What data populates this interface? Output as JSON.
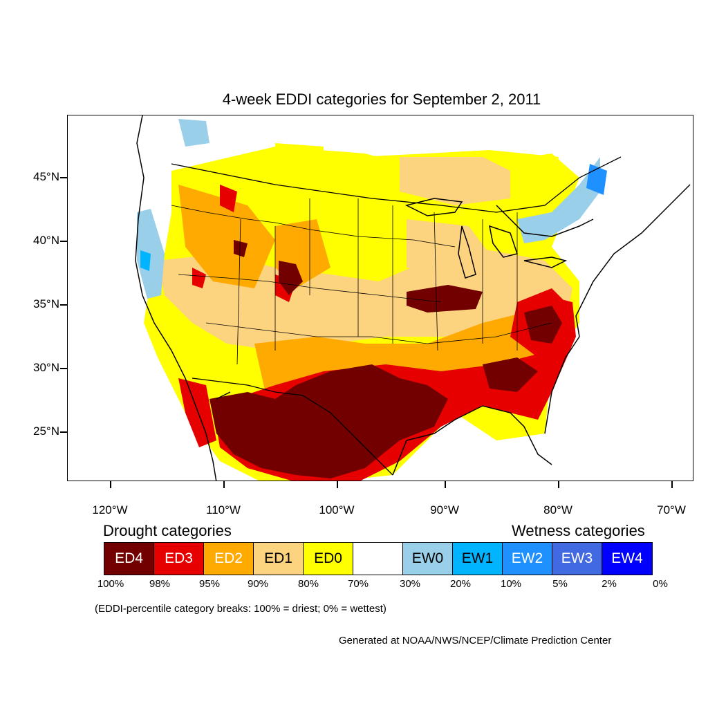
{
  "title": "4-week EDDI categories for September 2, 2011",
  "latitude_labels": [
    "45°N",
    "40°N",
    "35°N",
    "30°N",
    "25°N"
  ],
  "longitude_labels": [
    "120°W",
    "110°W",
    "100°W",
    "90°W",
    "80°W",
    "70°W"
  ],
  "drought_label": "Drought categories",
  "wetness_label": "Wetness categories",
  "legend": [
    {
      "label": "ED4",
      "color": "#730000",
      "text_color": "#ffffff"
    },
    {
      "label": "ED3",
      "color": "#e60000",
      "text_color": "#ffffff"
    },
    {
      "label": "ED2",
      "color": "#ffaa00",
      "text_color": "#ffffff"
    },
    {
      "label": "ED1",
      "color": "#fcd37f",
      "text_color": "#000000"
    },
    {
      "label": "ED0",
      "color": "#ffff00",
      "text_color": "#000000"
    },
    {
      "label": "",
      "color": "#ffffff",
      "text_color": "#000000"
    },
    {
      "label": "EW0",
      "color": "#9acfea",
      "text_color": "#000000"
    },
    {
      "label": "EW1",
      "color": "#00b4ff",
      "text_color": "#000000"
    },
    {
      "label": "EW2",
      "color": "#1e90ff",
      "text_color": "#ffffff"
    },
    {
      "label": "EW3",
      "color": "#4169e1",
      "text_color": "#ffffff"
    },
    {
      "label": "EW4",
      "color": "#0000ff",
      "text_color": "#ffffff"
    }
  ],
  "percentiles": [
    "100%",
    "98%",
    "95%",
    "90%",
    "80%",
    "70%",
    "30%",
    "20%",
    "10%",
    "5%",
    "2%",
    "0%"
  ],
  "note": "(EDDI-percentile category breaks: 100% = driest; 0% = wettest)",
  "credit": "Generated at NOAA/NWS/NCEP/Climate Prediction Center"
}
